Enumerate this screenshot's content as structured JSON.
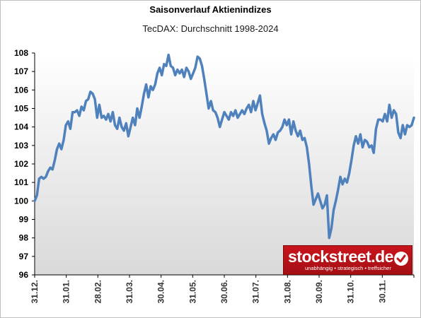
{
  "chart_data": {
    "type": "line",
    "title": "Saisonverlauf Aktienindizes",
    "subtitle": "TecDAX: Durchschnitt 1998-2024",
    "xlabel": "",
    "ylabel": "",
    "ylim": [
      96,
      108
    ],
    "yticks": [
      96,
      97,
      98,
      99,
      100,
      101,
      102,
      103,
      104,
      105,
      106,
      107,
      108
    ],
    "xticks": [
      "31.12.",
      "31.01.",
      "28.02.",
      "31.03.",
      "30.04.",
      "31.05.",
      "30.06.",
      "31.07.",
      "31.08.",
      "30.09.",
      "31.10.",
      "30.11."
    ],
    "grid": false,
    "legend": "none",
    "colors": {
      "line": "#4f81bd",
      "plot_bg_top": "#ffffff",
      "plot_bg_bottom": "#d9d9d9"
    },
    "series": [
      {
        "values": [
          100.0,
          100.3,
          101.2,
          101.3,
          101.2,
          101.3,
          101.6,
          101.8,
          101.7,
          102.2,
          102.8,
          103.1,
          102.8,
          103.3,
          104.1,
          104.3,
          103.9,
          104.8,
          104.8,
          104.9,
          104.6,
          105.1,
          104.9,
          105.4,
          105.5,
          105.9,
          105.8,
          105.5,
          104.5,
          105.2,
          104.5,
          104.6,
          104.4,
          104.7,
          104.3,
          104.8,
          104.1,
          103.9,
          104.5,
          104.0,
          103.8,
          104.2,
          103.5,
          104.0,
          104.5,
          104.1,
          105.0,
          104.5,
          105.1,
          105.8,
          106.3,
          105.6,
          106.2,
          106.0,
          106.3,
          106.9,
          107.2,
          106.8,
          107.4,
          107.3,
          107.9,
          107.3,
          107.2,
          106.8,
          107.1,
          106.9,
          107.1,
          106.7,
          107.2,
          107.0,
          106.6,
          106.9,
          107.2,
          107.8,
          107.7,
          107.3,
          106.6,
          105.8,
          105.0,
          105.4,
          104.9,
          104.8,
          104.5,
          104.0,
          104.4,
          104.8,
          104.6,
          104.4,
          104.8,
          104.6,
          104.9,
          104.5,
          104.7,
          104.9,
          104.7,
          105.0,
          105.2,
          104.8,
          105.4,
          104.9,
          105.3,
          105.7,
          104.7,
          104.2,
          103.8,
          103.1,
          103.4,
          103.6,
          103.3,
          103.7,
          103.8,
          104.0,
          104.4,
          104.1,
          104.4,
          103.6,
          104.3,
          103.8,
          103.5,
          103.8,
          103.3,
          103.4,
          102.9,
          102.0,
          100.8,
          99.8,
          100.1,
          100.4,
          100.0,
          99.6,
          99.8,
          100.3,
          98.0,
          98.5,
          99.5,
          100.0,
          100.6,
          101.3,
          100.9,
          101.2,
          101.0,
          101.5,
          102.2,
          103.0,
          103.5,
          103.1,
          103.6,
          102.9,
          103.3,
          103.2,
          102.9,
          103.0,
          102.6,
          103.9,
          104.4,
          104.4,
          104.3,
          104.7,
          104.3,
          105.2,
          104.5,
          104.9,
          104.7,
          103.7,
          103.4,
          104.1,
          103.6,
          104.1,
          104.0,
          104.1,
          104.5
        ]
      }
    ]
  },
  "logo": {
    "name": "stockstreet.de",
    "tagline": "unabhängig • strategisch • treffsicher"
  }
}
